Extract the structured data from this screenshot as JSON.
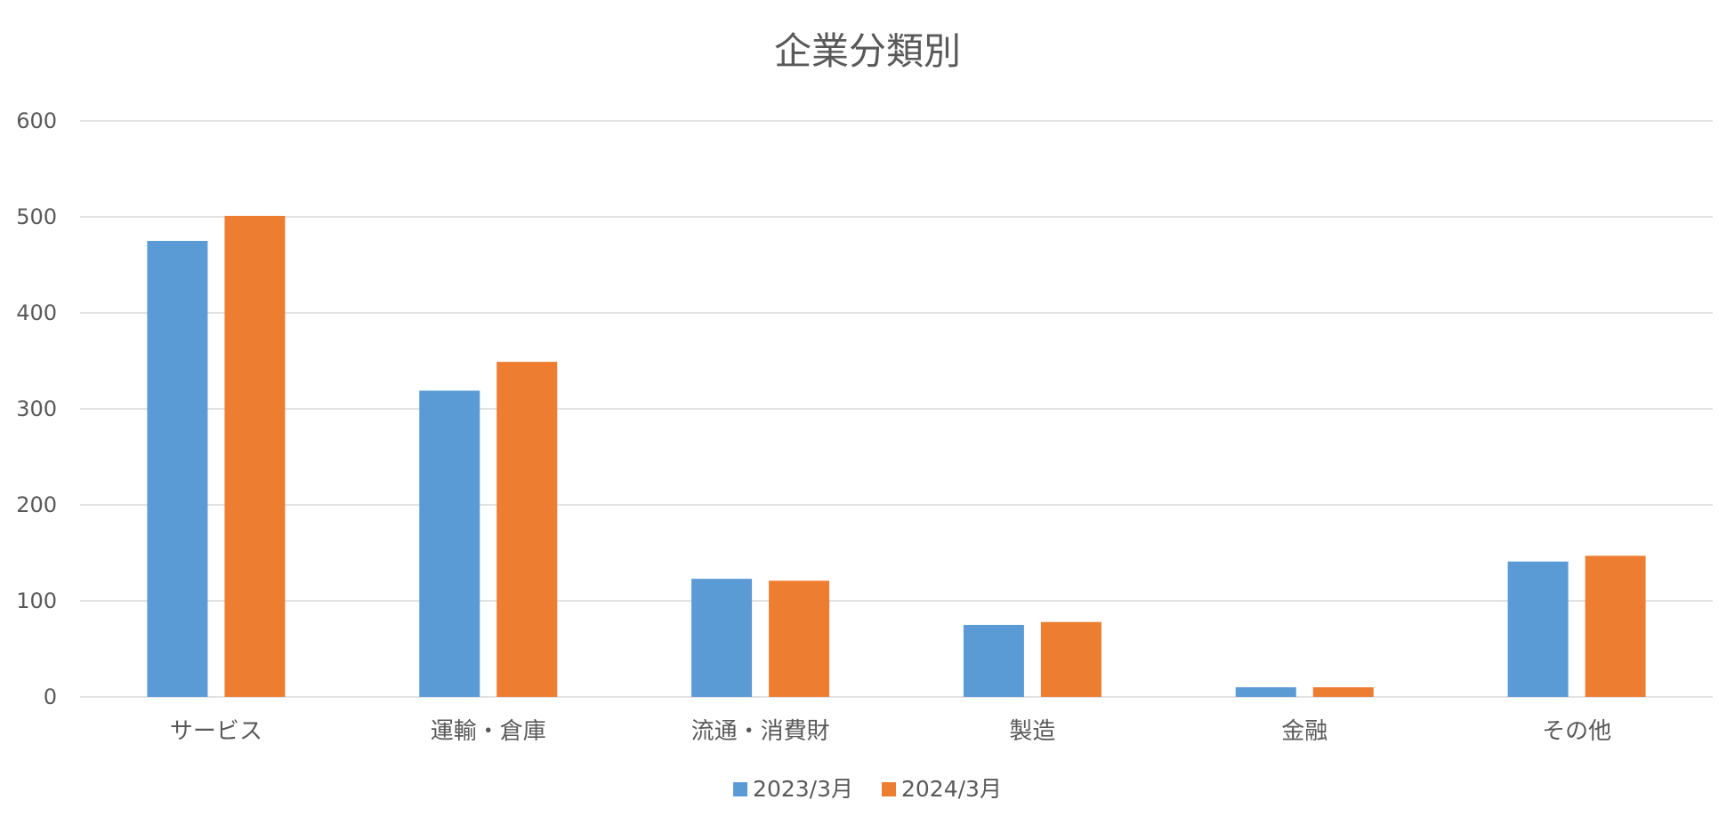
{
  "chart_data": {
    "type": "bar",
    "title": "企業分類別",
    "xlabel": "",
    "ylabel": "",
    "categories": [
      "サービス",
      "運輸・倉庫",
      "流通・消費財",
      "製造",
      "金融",
      "その他"
    ],
    "series": [
      {
        "name": "2023/3月",
        "color": "#5b9bd5",
        "values": [
          475,
          319,
          123,
          75,
          10,
          141
        ]
      },
      {
        "name": "2024/3月",
        "color": "#ed7d31",
        "values": [
          501,
          349,
          121,
          78,
          10,
          147
        ]
      }
    ],
    "ylim": [
      0,
      600
    ],
    "yticks": [
      0,
      100,
      200,
      300,
      400,
      500,
      600
    ],
    "grid": true,
    "legend_position": "bottom"
  }
}
